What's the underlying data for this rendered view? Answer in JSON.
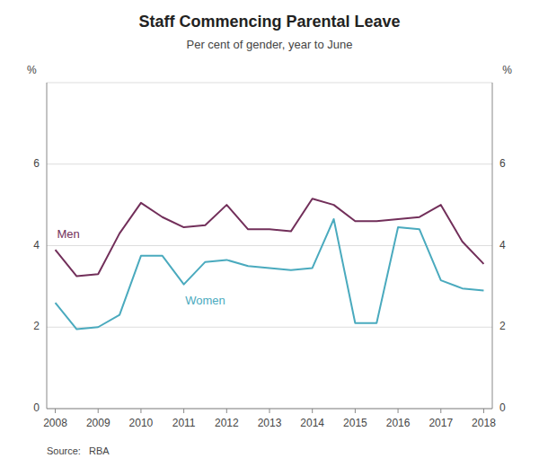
{
  "chart_data": {
    "type": "line",
    "title": "Staff Commencing Parental Leave",
    "subtitle": "Per cent of gender, year to June",
    "source": "Source:   RBA",
    "ylabel": "%",
    "y2label": "%",
    "x": [
      2008.0,
      2008.5,
      2009.0,
      2009.5,
      2010.0,
      2010.5,
      2011.0,
      2011.5,
      2012.0,
      2012.5,
      2013.0,
      2013.5,
      2014.0,
      2014.5,
      2015.0,
      2015.5,
      2016.0,
      2016.5,
      2017.0,
      2017.5,
      2018.0
    ],
    "series": [
      {
        "name": "Men",
        "color": "#722F5A",
        "values": [
          3.9,
          3.25,
          3.3,
          4.3,
          5.05,
          4.7,
          4.45,
          4.5,
          5.0,
          4.4,
          4.4,
          4.35,
          5.15,
          5.0,
          4.6,
          4.6,
          4.65,
          4.7,
          5.0,
          4.1,
          3.55
        ]
      },
      {
        "name": "Women",
        "color": "#4AAABE",
        "values": [
          2.6,
          1.95,
          2.0,
          2.3,
          3.75,
          3.75,
          3.05,
          3.6,
          3.65,
          3.5,
          3.45,
          3.4,
          3.45,
          4.65,
          2.1,
          2.1,
          4.45,
          4.4,
          3.15,
          2.95,
          2.9
        ]
      }
    ],
    "xlim": [
      2007.8,
      2018.2
    ],
    "xticks": [
      2008,
      2009,
      2010,
      2011,
      2012,
      2013,
      2014,
      2015,
      2016,
      2017,
      2018
    ],
    "ylim": [
      0,
      8
    ],
    "yticks": [
      0,
      2,
      4,
      6,
      {
        "value": 8,
        "label": null
      }
    ],
    "y2lim": [
      0,
      8
    ],
    "y2ticks": [
      0,
      2,
      4,
      6,
      {
        "value": 8,
        "label": null
      }
    ],
    "grid": true
  }
}
